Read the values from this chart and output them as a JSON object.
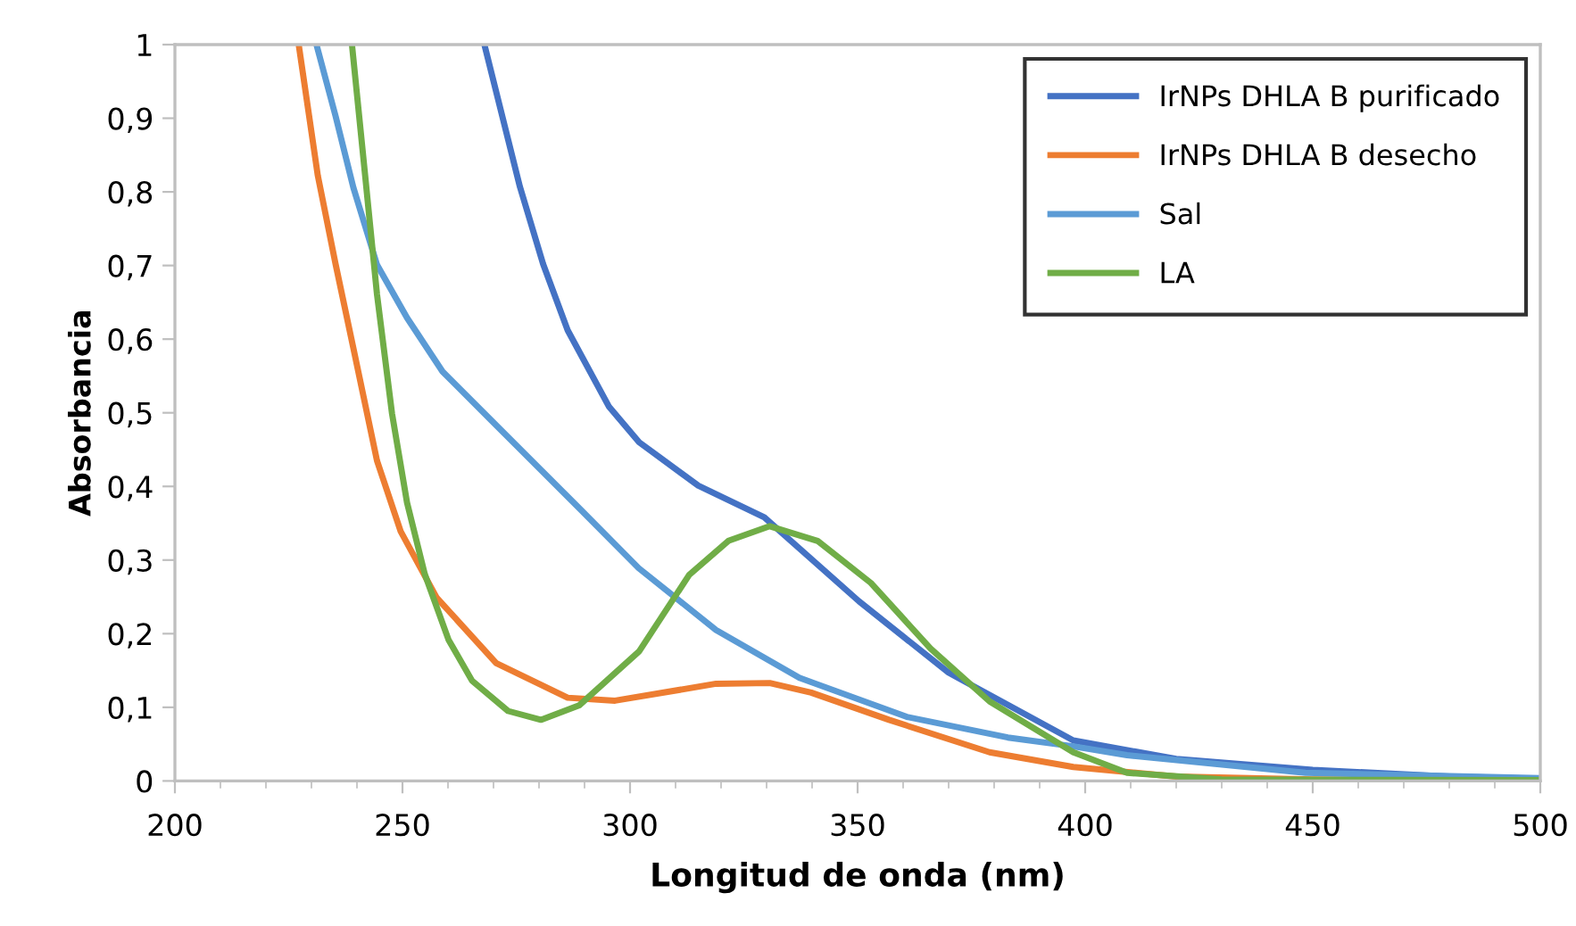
{
  "chart_data": {
    "type": "line",
    "xlabel": "Longitud de onda (nm)",
    "ylabel": "Absorbancia",
    "xlim": [
      200,
      500
    ],
    "ylim": [
      0,
      1
    ],
    "xticks": [
      200,
      {
        "value": 210,
        "label": null
      },
      {
        "value": 220,
        "label": null
      },
      {
        "value": 230,
        "label": null
      },
      {
        "value": 240,
        "label": null
      },
      250,
      {
        "value": 260,
        "label": null
      },
      {
        "value": 270,
        "label": null
      },
      {
        "value": 280,
        "label": null
      },
      {
        "value": 290,
        "label": null
      },
      300,
      {
        "value": 310,
        "label": null
      },
      {
        "value": 320,
        "label": null
      },
      {
        "value": 330,
        "label": null
      },
      {
        "value": 340,
        "label": null
      },
      350,
      {
        "value": 360,
        "label": null
      },
      {
        "value": 370,
        "label": null
      },
      {
        "value": 380,
        "label": null
      },
      {
        "value": 390,
        "label": null
      },
      400,
      {
        "value": 410,
        "label": null
      },
      {
        "value": 420,
        "label": null
      },
      {
        "value": 430,
        "label": null
      },
      {
        "value": 440,
        "label": null
      },
      450,
      {
        "value": 460,
        "label": null
      },
      {
        "value": 470,
        "label": null
      },
      {
        "value": 480,
        "label": null
      },
      {
        "value": 490,
        "label": null
      },
      500
    ],
    "yticks": [
      0,
      {
        "value": 0.1,
        "label": "0,1"
      },
      {
        "value": 0.2,
        "label": "0,2"
      },
      {
        "value": 0.3,
        "label": "0,3"
      },
      {
        "value": 0.4,
        "label": "0,4"
      },
      {
        "value": 0.5,
        "label": "0,5"
      },
      {
        "value": 0.6,
        "label": "0,6"
      },
      {
        "value": 0.7,
        "label": "0,7"
      },
      {
        "value": 0.8,
        "label": "0,8"
      },
      {
        "value": 0.9,
        "label": "0,9"
      },
      1
    ],
    "grid": false,
    "legend": "top right",
    "marker": "none",
    "line_style": "solid",
    "series": [
      {
        "name": "IrNPs DHLA B purificado",
        "color": "#4472c4",
        "x": [
          268.0,
          275.8,
          280.9,
          286.3,
          295.4,
          302.0,
          315.0,
          329.5,
          350.3,
          370.0,
          397.4,
          420,
          450,
          480,
          500
        ],
        "values": [
          1.0,
          0.807,
          0.702,
          0.612,
          0.508,
          0.46,
          0.401,
          0.358,
          0.244,
          0.147,
          0.055,
          0.03,
          0.015,
          0.006,
          0.003
        ]
      },
      {
        "name": "IrNPs DHLA B desecho",
        "color": "#ed7d31",
        "x": [
          227.2,
          231.4,
          235.3,
          239.2,
          244.4,
          249.6,
          257.5,
          270.6,
          286.3,
          296.7,
          318.9,
          330.7,
          339.8,
          356.9,
          379.0,
          397.4,
          420,
          450,
          500
        ],
        "values": [
          1.0,
          0.822,
          0.702,
          0.588,
          0.435,
          0.339,
          0.249,
          0.16,
          0.113,
          0.109,
          0.132,
          0.133,
          0.12,
          0.083,
          0.039,
          0.019,
          0.006,
          0.002,
          0.001
        ]
      },
      {
        "name": "Sal",
        "color": "#5b9bd5",
        "x": [
          231.1,
          235.3,
          239.2,
          244.4,
          251.0,
          258.8,
          270.6,
          288.9,
          301.9,
          318.9,
          337.2,
          360.8,
          383.0,
          397.4,
          409.2,
          448.4,
          500
        ],
        "values": [
          1.0,
          0.903,
          0.806,
          0.701,
          0.629,
          0.556,
          0.483,
          0.37,
          0.289,
          0.205,
          0.14,
          0.087,
          0.059,
          0.047,
          0.035,
          0.011,
          0.004
        ]
      },
      {
        "name": "LA",
        "color": "#70ad47",
        "x": [
          238.9,
          241.8,
          244.4,
          247.7,
          251.0,
          254.9,
          260.1,
          265.3,
          273.2,
          280.4,
          288.9,
          302.0,
          313.0,
          321.6,
          330.7,
          341.2,
          352.9,
          366.0,
          379.0,
          397.4,
          409.2,
          430,
          500
        ],
        "values": [
          1.0,
          0.822,
          0.661,
          0.499,
          0.378,
          0.281,
          0.192,
          0.136,
          0.095,
          0.083,
          0.103,
          0.176,
          0.28,
          0.326,
          0.346,
          0.326,
          0.269,
          0.18,
          0.108,
          0.039,
          0.011,
          0.002,
          0.001
        ]
      }
    ]
  }
}
